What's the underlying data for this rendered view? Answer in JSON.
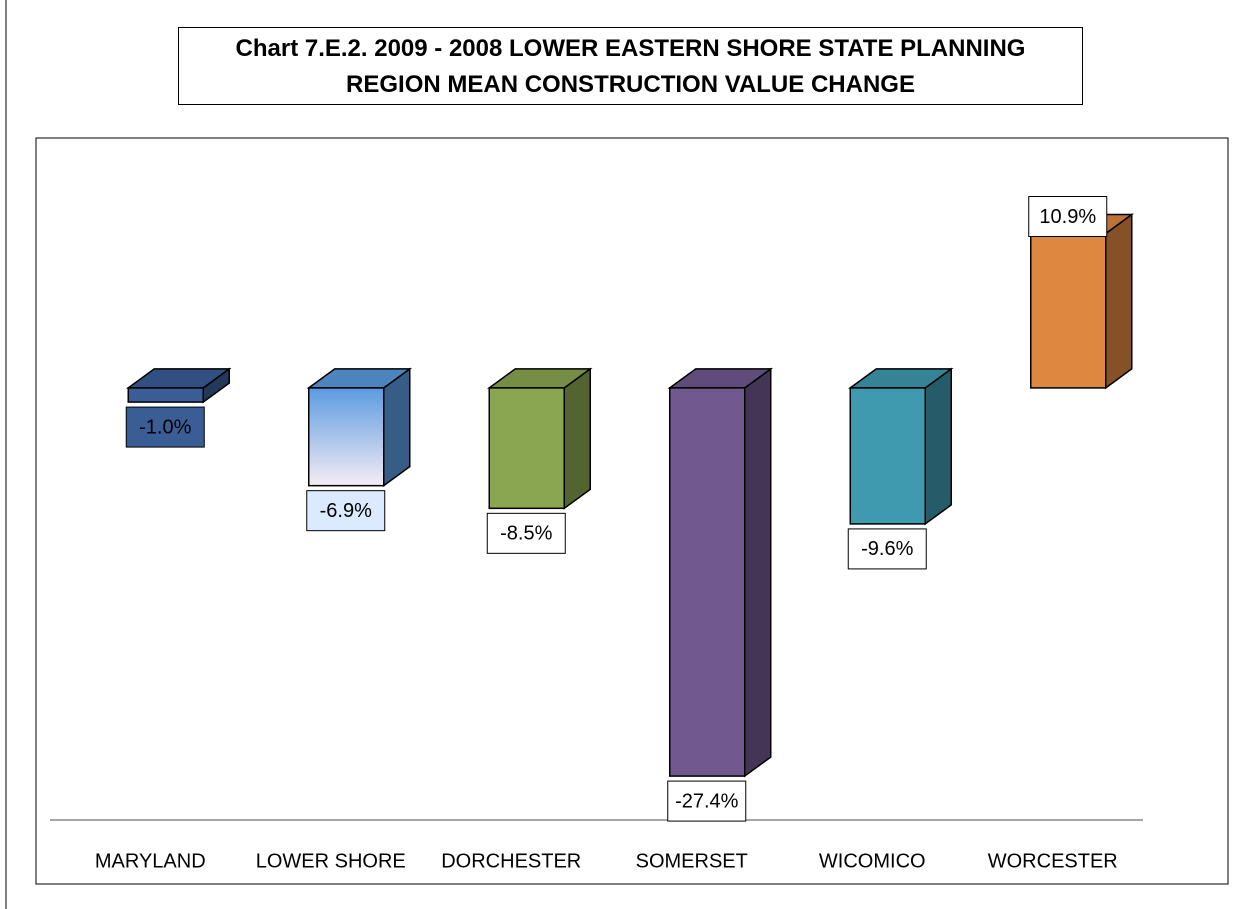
{
  "chart_data": {
    "type": "bar3d",
    "title": "Chart  7.E.2.  2009 - 2008 LOWER EASTERN SHORE STATE PLANNING REGION MEAN CONSTRUCTION VALUE CHANGE",
    "categories": [
      "MARYLAND",
      "LOWER SHORE",
      "DORCHESTER",
      "SOMERSET",
      "WICOMICO",
      "WORCESTER"
    ],
    "values": [
      -1.0,
      -6.9,
      -8.5,
      -27.4,
      -9.6,
      10.9
    ],
    "value_labels": [
      "-1.0%",
      "-6.9%",
      "-8.5%",
      "-27.4%",
      "-9.6%",
      "10.9%"
    ],
    "colors": [
      "#3a5d96",
      "#5b9be0",
      "#8aa650",
      "#715990",
      "#3f9ab0",
      "#de8740"
    ],
    "ylim": [
      -30.5,
      17.5
    ]
  }
}
